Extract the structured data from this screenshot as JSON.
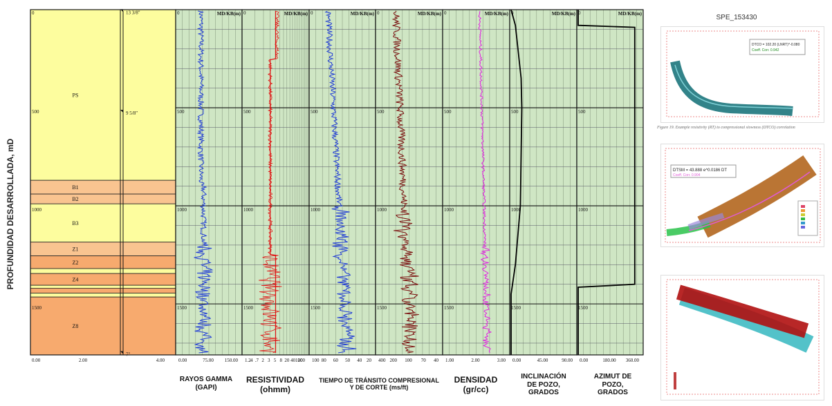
{
  "y_axis_label": "PROFUNDIDAD DESARROLLADA, mD",
  "track_header": "MD/KB(m)",
  "depth_ticks": [
    "0",
    "500",
    "1000",
    "1500"
  ],
  "casing": [
    {
      "label": "13 3/8\"",
      "depth": 12
    },
    {
      "label": "9 5/8\"",
      "depth": 525
    },
    {
      "label": "7\"",
      "depth": 1755
    }
  ],
  "zones": [
    {
      "name": "PS",
      "top": 0,
      "base": 870,
      "color": "#fdfd9e"
    },
    {
      "name": "B1",
      "top": 870,
      "base": 940,
      "color": "#f9c490"
    },
    {
      "name": "B2",
      "top": 940,
      "base": 990,
      "color": "#f9c490"
    },
    {
      "name": "B3",
      "top": 990,
      "base": 1185,
      "color": "#fdfd9e"
    },
    {
      "name": "Z1",
      "top": 1185,
      "base": 1255,
      "color": "#f9c490"
    },
    {
      "name": "Z2",
      "top": 1255,
      "base": 1320,
      "color": "#f7aa6e"
    },
    {
      "name": "",
      "top": 1320,
      "base": 1345,
      "color": "#fdfd9e"
    },
    {
      "name": "Z4",
      "top": 1345,
      "base": 1405,
      "color": "#f7aa6e"
    },
    {
      "name": "",
      "top": 1405,
      "base": 1420,
      "color": "#fdfd9e"
    },
    {
      "name": "",
      "top": 1420,
      "base": 1445,
      "color": "#f7aa6e"
    },
    {
      "name": "",
      "top": 1445,
      "base": 1465,
      "color": "#fdfd9e"
    },
    {
      "name": "Z8",
      "top": 1465,
      "base": 1760,
      "color": "#f7aa6e"
    }
  ],
  "zone_scale": [
    "0.00",
    "2.00",
    "4.00"
  ],
  "tracks": [
    {
      "id": "gr",
      "scale": [
        "0.00",
        "75.00",
        "150.00"
      ],
      "footer": [
        "RAYOS GAMMA",
        "(GAPI)"
      ],
      "color": "#1f3bd6"
    },
    {
      "id": "res",
      "scale": [
        "1.2",
        ".4",
        ".7",
        "2",
        "3",
        "5",
        "8",
        "20",
        "40",
        "100",
        "200"
      ],
      "footer": [
        "RESISTIVIDAD",
        "(ohmm)"
      ],
      "color": "#e01212"
    },
    {
      "id": "dtc",
      "scale": [
        "100",
        "80",
        "60",
        "50",
        "40",
        "20"
      ],
      "footer": [
        "TIEMPO DE TRÁNSITO COMPRESIONAL",
        "Y DE CORTE (ms/ft)"
      ],
      "color": "#1f3bd6"
    },
    {
      "id": "dts",
      "scale": [
        "400",
        "200",
        "100",
        "70",
        "40"
      ],
      "footer": [],
      "color": "#7a0c0c"
    },
    {
      "id": "den",
      "scale": [
        "1.00",
        "2.00",
        "3.00"
      ],
      "footer": [
        "DENSIDAD",
        "(gr/cc)"
      ],
      "color": "#e021e0"
    },
    {
      "id": "inc",
      "scale": [
        "0.00",
        "45.00",
        "90.00"
      ],
      "footer": [
        "INCLINACIÓN",
        "DE POZO,",
        "GRADOS"
      ],
      "color": "#000000"
    },
    {
      "id": "azi",
      "scale": [
        "0.00",
        "180.00",
        "360.00"
      ],
      "footer": [
        "AZIMUT DE",
        "POZO,",
        "GRADOS"
      ],
      "color": "#000000"
    }
  ],
  "chart_data": {
    "type": "line",
    "ylabel": "PROFUNDIDAD DESARROLLADA, mD",
    "depth_range": [
      0,
      1760
    ],
    "inclination_deg": {
      "depth": [
        0,
        80,
        350,
        500,
        1000,
        1300,
        1450,
        1760
      ],
      "value": [
        0,
        6,
        14,
        15,
        13,
        6,
        0,
        0
      ]
    },
    "azimuth_deg": {
      "depth": [
        0,
        80,
        90,
        1400,
        1415,
        1760
      ],
      "value": [
        0,
        0,
        320,
        320,
        0,
        0
      ]
    }
  },
  "right_panels": {
    "title": "SPE_153430",
    "caption": "Figure 19. Example resistivity (RT) to compressional slowness (DTCO) correlation",
    "fit1": "DTCO = 102.20 (LNRT)^-0.080",
    "fit2": "DTSM = 43.888 e^0.0186 DT",
    "fit2_sub": "Coeff. Corr. 0.904"
  }
}
